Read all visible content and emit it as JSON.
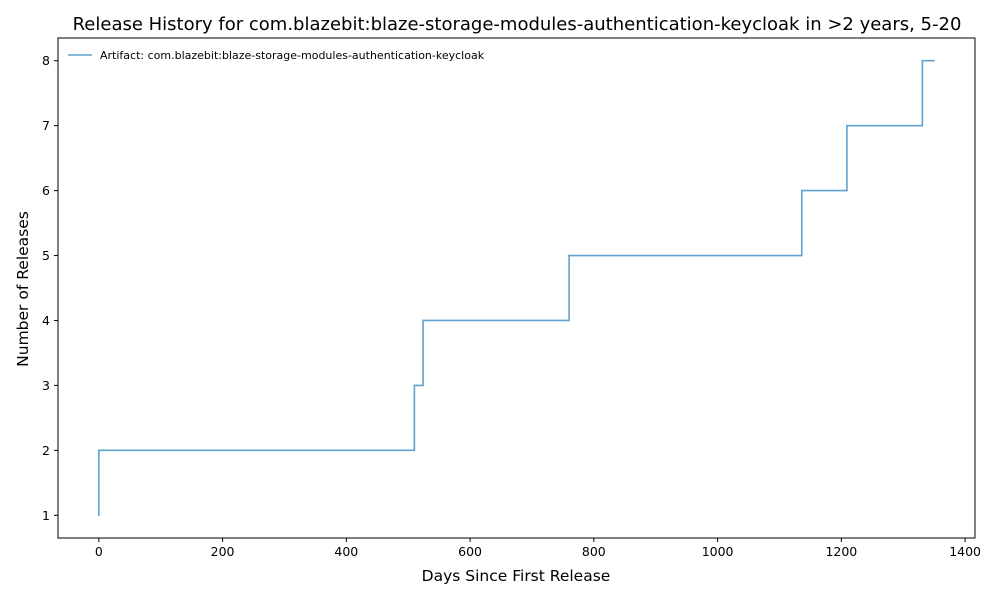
{
  "chart_data": {
    "type": "line",
    "drawstyle": "steps-post",
    "title": "Release History for com.blazebit:blaze-storage-modules-authentication-keycloak in >2 years, 5-20",
    "xlabel": "Days Since First Release",
    "ylabel": "Number of Releases",
    "xlim": [
      -66,
      1416
    ],
    "ylim": [
      0.65,
      8.35
    ],
    "xticks": [
      0,
      200,
      400,
      600,
      800,
      1000,
      1200,
      1400
    ],
    "yticks": [
      1,
      2,
      3,
      4,
      5,
      6,
      7,
      8
    ],
    "grid": false,
    "legend_position": "upper-left",
    "series": [
      {
        "name": "Artifact: com.blazebit:blaze-storage-modules-authentication-keycloak",
        "color": "#5fa2ce",
        "x": [
          0,
          0,
          510,
          524,
          760,
          1136,
          1209,
          1331,
          1350
        ],
        "y": [
          1,
          2,
          3,
          4,
          5,
          6,
          7,
          8,
          8
        ]
      }
    ]
  }
}
